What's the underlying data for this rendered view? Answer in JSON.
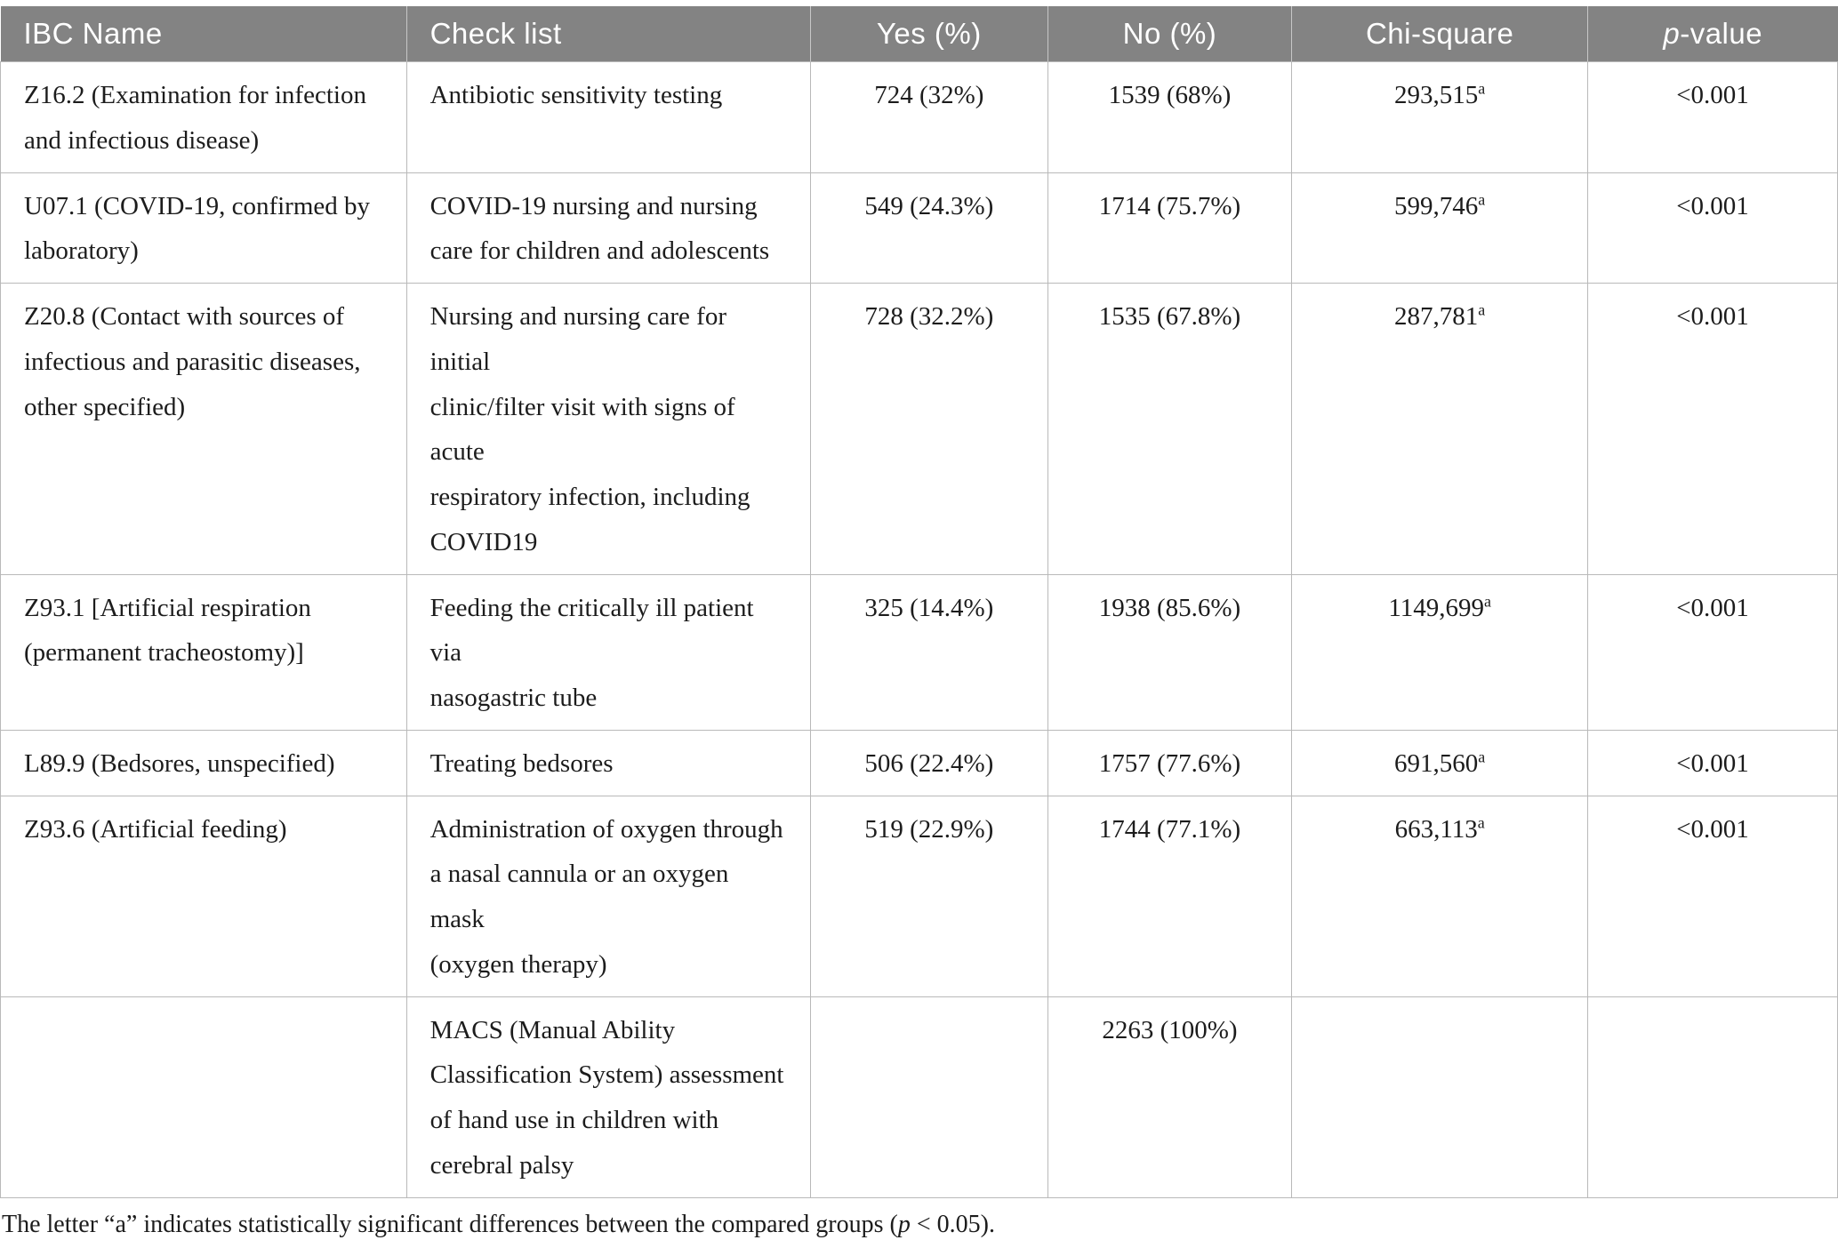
{
  "table": {
    "header": {
      "ibc": "IBC Name",
      "check": "Check list",
      "yes": "Yes (%)",
      "no": "No (%)",
      "chi": "Chi-square",
      "p_italic": "p",
      "p_rest": "-value"
    },
    "rows": [
      {
        "ibc": "Z16.2 (Examination for infection\nand infectious disease)",
        "check": "Antibiotic sensitivity testing",
        "yes": "724 (32%)",
        "no": "1539 (68%)",
        "chi": "293,515",
        "chi_sup": "a",
        "p": "<0.001"
      },
      {
        "ibc": "U07.1 (COVID-19, confirmed by\nlaboratory)",
        "check": "COVID-19 nursing and nursing\ncare for children and adolescents",
        "yes": "549 (24.3%)",
        "no": "1714 (75.7%)",
        "chi": "599,746",
        "chi_sup": "a",
        "p": "<0.001"
      },
      {
        "ibc": "Z20.8 (Contact with sources of\ninfectious and parasitic diseases,\nother specified)",
        "check": "Nursing and nursing care for initial\nclinic/filter visit with signs of acute\nrespiratory infection, including\nCOVID19",
        "yes": "728 (32.2%)",
        "no": "1535 (67.8%)",
        "chi": "287,781",
        "chi_sup": "a",
        "p": "<0.001"
      },
      {
        "ibc": "Z93.1 [Artificial respiration\n(permanent tracheostomy)]",
        "check": "Feeding the critically ill patient via\nnasogastric tube",
        "yes": "325 (14.4%)",
        "no": "1938 (85.6%)",
        "chi": "1149,699",
        "chi_sup": "a",
        "p": "<0.001"
      },
      {
        "ibc": "L89.9 (Bedsores, unspecified)",
        "check": "Treating bedsores",
        "yes": "506 (22.4%)",
        "no": "1757 (77.6%)",
        "chi": "691,560",
        "chi_sup": "a",
        "p": "<0.001"
      },
      {
        "ibc": "Z93.6 (Artificial feeding)",
        "check": "Administration of oxygen through\na nasal cannula or an oxygen mask\n(oxygen therapy)",
        "yes": "519 (22.9%)",
        "no": "1744 (77.1%)",
        "chi": "663,113",
        "chi_sup": "a",
        "p": "<0.001"
      },
      {
        "ibc": "",
        "check": "MACS (Manual Ability\nClassification System) assessment\nof hand use in children with\ncerebral palsy",
        "yes": "",
        "no": "2263 (100%)",
        "chi": "",
        "chi_sup": "",
        "p": ""
      }
    ]
  },
  "footnote": {
    "before_p": "The letter “a” indicates statistically significant differences between the compared groups (",
    "p": "p",
    "after_p": " < 0.05)."
  },
  "colors": {
    "header_bg": "#838383",
    "header_text": "#ffffff",
    "grid": "#b9b9b9",
    "body_text": "#1c1c1c"
  }
}
